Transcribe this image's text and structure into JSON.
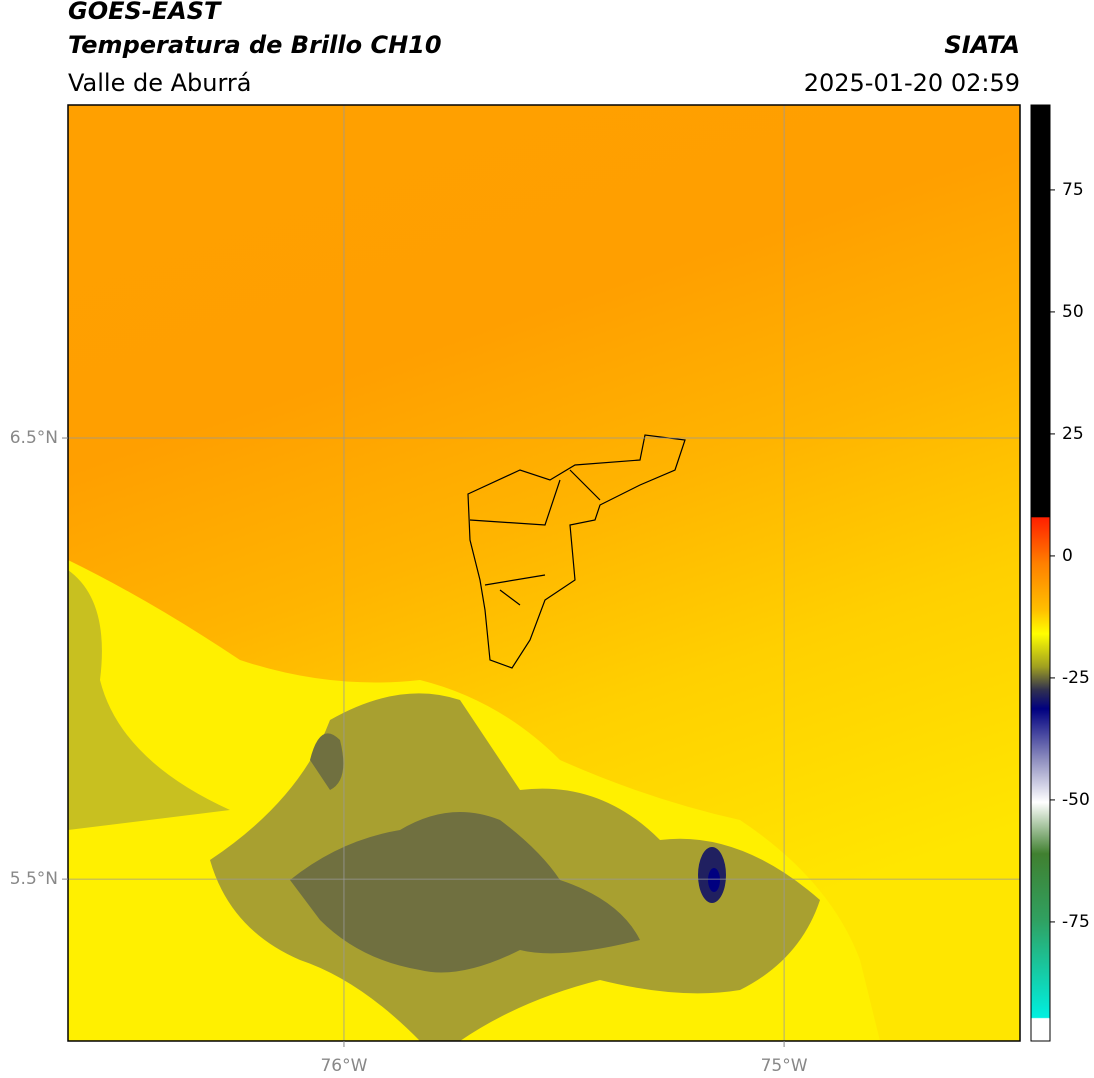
{
  "header": {
    "title": "GOES-EAST",
    "subtitle": "Temperatura de Brillo CH10",
    "region": "Valle de Aburrá",
    "source": "SIATA",
    "timestamp": "2025-01-20 02:59"
  },
  "map": {
    "xlim": [
      -76.627,
      -74.464
    ],
    "ylim": [
      5.133,
      7.255
    ],
    "xticks": [
      {
        "value": -76,
        "label": "76°W"
      },
      {
        "value": -75,
        "label": "75°W"
      }
    ],
    "yticks": [
      {
        "value": 6.5,
        "label": "6.5°N"
      },
      {
        "value": 5.5,
        "label": "5.5°N"
      }
    ],
    "grid": true
  },
  "colorbar": {
    "lim": [
      -99.4,
      92.4
    ],
    "ticks": [
      75,
      50,
      25,
      0,
      -25,
      -50,
      -75
    ]
  }
}
